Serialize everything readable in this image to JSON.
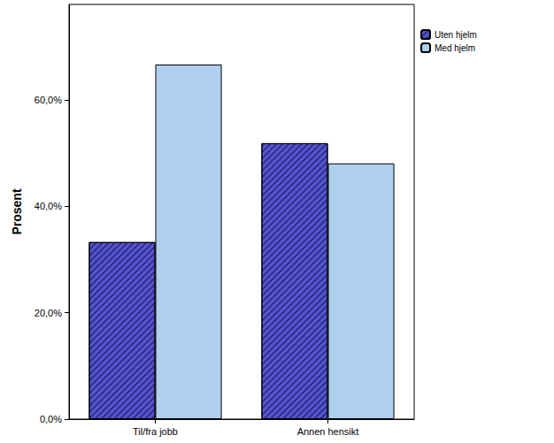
{
  "chart_data": {
    "type": "bar",
    "y_label": "Prosent",
    "categories": [
      "Til/fra jobb",
      "Annen hensikt"
    ],
    "series": [
      {
        "name": "Uten hjelm",
        "color": "#5656d4",
        "values": [
          33.3,
          51.9
        ]
      },
      {
        "name": "Med hjelm",
        "color": "#aecfed",
        "values": [
          66.7,
          48.1
        ]
      }
    ],
    "ylim": [
      0,
      78
    ],
    "yticks": [
      {
        "value": 0,
        "label": "0,0%"
      },
      {
        "value": 20,
        "label": "20,0%"
      },
      {
        "value": 40,
        "label": "40,0%"
      },
      {
        "value": 60,
        "label": "60,0%"
      }
    ],
    "grid": false,
    "legend": "top-right"
  }
}
